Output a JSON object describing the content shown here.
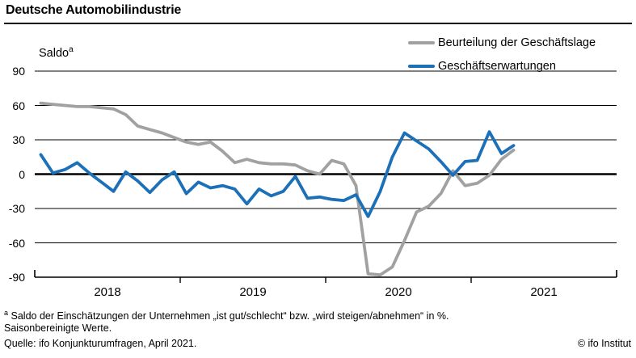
{
  "title": "Deutsche Automobilindustrie",
  "legend": [
    {
      "label": "Beurteilung der Geschäftslage",
      "color": "#a1a1a0"
    },
    {
      "label": "Geschäftserwartungen",
      "color": "#1c70b8"
    }
  ],
  "axis": {
    "saldo_label": "Saldo",
    "saldo_sup": "a"
  },
  "footnotes": {
    "note_sup": "a",
    "line1": "Saldo der Einschätzungen der Unternehmen „ist gut/schlecht“ bzw. „wird steigen/abnehmen“ in %.",
    "line2": "Saisonbereinigte Werte.",
    "line3": "Quelle: ifo Konjunkturumfragen, April 2021.",
    "copyright": "© ifo Institut"
  },
  "chart_data": {
    "type": "line",
    "title": "Deutsche Automobilindustrie",
    "ylabel": "Saldo",
    "ylim": [
      -90,
      90
    ],
    "yticks": [
      90,
      60,
      30,
      0,
      -30,
      -60,
      -90
    ],
    "grid": "horizontal",
    "legend_position": "top-right",
    "x_tick_years": [
      "2018",
      "2019",
      "2020",
      "2021"
    ],
    "x_total_months": 48,
    "x_first_point": "2018-01",
    "x_last_point": "2021-04",
    "series": [
      {
        "name": "Beurteilung der Geschäftslage",
        "color": "#a1a1a0",
        "values": [
          62,
          61,
          60,
          59,
          59,
          58,
          57,
          52,
          42,
          39,
          36,
          32,
          28,
          26,
          28,
          20,
          10,
          13,
          10,
          9,
          9,
          8,
          3,
          0,
          12,
          9,
          -10,
          -87,
          -88,
          -81,
          -58,
          -33,
          -28,
          -17,
          3,
          -10,
          -8,
          -1,
          13,
          21
        ]
      },
      {
        "name": "Geschäftserwartungen",
        "color": "#1c70b8",
        "values": [
          17,
          1,
          4,
          10,
          1,
          -7,
          -15,
          2,
          -6,
          -16,
          -5,
          2,
          -17,
          -7,
          -12,
          -10,
          -13,
          -26,
          -13,
          -19,
          -15,
          -2,
          -21,
          -20,
          -22,
          -23,
          -18,
          -37,
          -15,
          15,
          36,
          29,
          22,
          11,
          -1,
          11,
          12,
          37,
          18,
          25
        ]
      }
    ]
  }
}
